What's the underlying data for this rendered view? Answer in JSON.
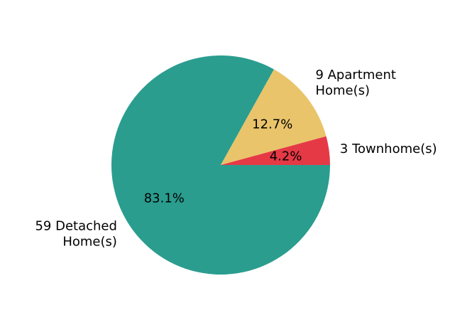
{
  "chart_data": {
    "type": "pie",
    "title": "",
    "slices": [
      {
        "label_lines": [
          "59 Detached",
          "Home(s)"
        ],
        "value": 59,
        "pct_label": "83.1%",
        "color": "#2a9d8f"
      },
      {
        "label_lines": [
          "9 Apartment",
          "Home(s)"
        ],
        "value": 9,
        "pct_label": "12.7%",
        "color": "#e9c46a"
      },
      {
        "label_lines": [
          "3 Townhome(s)"
        ],
        "value": 3,
        "pct_label": "4.2%",
        "color": "#e63946"
      }
    ],
    "start_angle_deg": 0,
    "direction": "clockwise",
    "legend": "none"
  }
}
